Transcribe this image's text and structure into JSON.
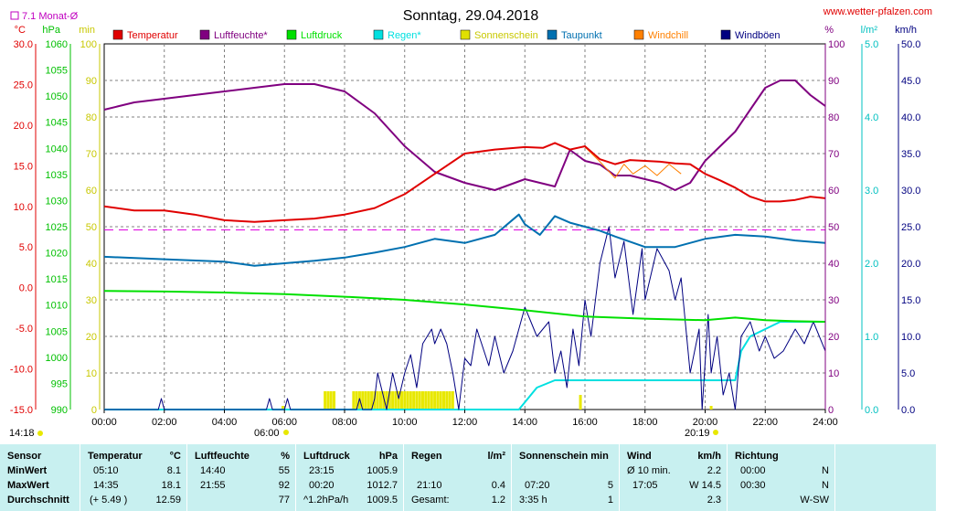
{
  "chart_data": {
    "type": "line",
    "title": "Sonntag, 29.04.2018",
    "website": "www.wetter-pfalzen.com",
    "avg_label": "7.1 Monat-Ø",
    "x_ticks": [
      "00:00",
      "02:00",
      "04:00",
      "06:00",
      "08:00",
      "10:00",
      "12:00",
      "14:00",
      "16:00",
      "18:00",
      "20:00",
      "22:00",
      "24:00"
    ],
    "sunrise": "06:00",
    "sunset": "20:19",
    "last_time": "14:18",
    "axes": {
      "temp": {
        "unit": "°C",
        "min": -15,
        "max": 30,
        "ticks": [
          "30.0",
          "25.0",
          "20.0",
          "15.0",
          "10.0",
          "5.0",
          "0.0",
          "-5.0",
          "-10.0",
          "-15.0"
        ]
      },
      "pressure": {
        "unit": "hPa",
        "min": 990,
        "max": 1060,
        "ticks": [
          "1060",
          "1055",
          "1050",
          "1045",
          "1040",
          "1035",
          "1030",
          "1025",
          "1020",
          "1015",
          "1010",
          "1005",
          "1000",
          "995",
          "990"
        ]
      },
      "minutes": {
        "unit": "min",
        "min": 0,
        "max": 100,
        "ticks": [
          "100",
          "90",
          "80",
          "70",
          "60",
          "50",
          "40",
          "30",
          "20",
          "10",
          "0"
        ]
      },
      "humidity": {
        "unit": "%",
        "min": 0,
        "max": 100,
        "ticks": [
          "100",
          "90",
          "80",
          "70",
          "60",
          "50",
          "40",
          "30",
          "20",
          "10",
          "0"
        ]
      },
      "rain": {
        "unit": "l/m²",
        "min": 0,
        "max": 5,
        "ticks": [
          "5.0",
          "4.0",
          "3.0",
          "2.0",
          "1.0",
          "0.0"
        ]
      },
      "wind": {
        "unit": "km/h",
        "min": 0,
        "max": 50,
        "ticks": [
          "50.0",
          "45.0",
          "40.0",
          "35.0",
          "30.0",
          "25.0",
          "20.0",
          "15.0",
          "10.0",
          "5.0",
          "0.0"
        ]
      }
    },
    "legend": [
      {
        "name": "Temperatur",
        "color": "#e00000"
      },
      {
        "name": "Luftfeuchte*",
        "color": "#800080"
      },
      {
        "name": "Luftdruck",
        "color": "#00e000"
      },
      {
        "name": "Regen*",
        "color": "#00e0e0"
      },
      {
        "name": "Sonnenschein",
        "color": "#e0e000"
      },
      {
        "name": "Taupunkt",
        "color": "#0070b0"
      },
      {
        "name": "Windchill",
        "color": "#ff8000"
      },
      {
        "name": "Windböen",
        "color": "#000080"
      }
    ],
    "monthly_avg_temp": 7.1,
    "series": [
      {
        "name": "Temperatur",
        "axis": "temp",
        "color": "#e00000",
        "x": [
          0,
          1,
          2,
          3,
          4,
          5,
          6,
          7,
          8,
          9,
          10,
          11,
          12,
          13,
          14,
          14.6,
          15,
          15.5,
          16,
          16.5,
          17,
          17.5,
          18,
          18.5,
          19,
          19.5,
          20,
          20.5,
          21,
          21.5,
          22,
          22.5,
          23,
          23.5,
          24
        ],
        "y": [
          10.0,
          9.5,
          9.5,
          9.0,
          8.3,
          8.1,
          8.3,
          8.5,
          9.0,
          9.8,
          11.5,
          14.0,
          16.5,
          17.0,
          17.3,
          17.2,
          17.8,
          17.0,
          17.4,
          15.8,
          15.2,
          15.7,
          15.6,
          15.5,
          15.3,
          15.2,
          14.0,
          13.2,
          12.3,
          11.2,
          10.6,
          10.6,
          10.8,
          11.2,
          11.0
        ]
      },
      {
        "name": "Luftfeuchte*",
        "axis": "humidity",
        "color": "#800080",
        "x": [
          0,
          1,
          2,
          3,
          4,
          5,
          6,
          7,
          8,
          9,
          10,
          11,
          12,
          13,
          14,
          15,
          15.5,
          16,
          16.5,
          17,
          17.5,
          18,
          18.5,
          19,
          19.5,
          20,
          20.5,
          21,
          21.5,
          22,
          22.5,
          23,
          23.5,
          24
        ],
        "y": [
          82,
          84,
          85,
          86,
          87,
          88,
          89,
          89,
          87,
          81,
          72,
          65,
          62,
          60,
          63,
          61,
          71,
          68,
          67,
          64,
          64,
          63,
          62,
          60,
          62,
          68,
          72,
          76,
          82,
          88,
          90,
          90,
          86,
          83
        ]
      },
      {
        "name": "Luftdruck",
        "axis": "pressure",
        "color": "#00e000",
        "x": [
          0,
          2,
          4,
          6,
          8,
          10,
          12,
          14,
          16,
          18,
          20,
          21,
          22,
          23,
          24
        ],
        "y": [
          1012.7,
          1012.6,
          1012.4,
          1012.1,
          1011.6,
          1011.0,
          1010.1,
          1009.0,
          1007.8,
          1007.4,
          1007.1,
          1007.6,
          1007.1,
          1006.9,
          1006.8
        ]
      },
      {
        "name": "Taupunkt",
        "axis": "temp",
        "color": "#0070b0",
        "x": [
          0,
          2,
          4,
          5,
          6,
          7,
          8,
          9,
          10,
          11,
          12,
          13,
          13.8,
          14,
          14.5,
          15,
          15.5,
          16,
          16.5,
          17,
          18,
          19,
          20,
          21,
          22,
          23,
          24
        ],
        "y": [
          3.8,
          3.5,
          3.2,
          2.7,
          3.0,
          3.3,
          3.7,
          4.3,
          5.0,
          6.0,
          5.5,
          6.5,
          9.0,
          7.8,
          6.5,
          8.8,
          8.0,
          7.5,
          7.0,
          6.3,
          5.0,
          5.0,
          6.0,
          6.5,
          6.3,
          5.8,
          5.5
        ]
      },
      {
        "name": "Windchill",
        "axis": "temp",
        "color": "#ff8000",
        "x": [
          16,
          16.5,
          17,
          17.3,
          17.6,
          18,
          18.4,
          18.8,
          19.2
        ],
        "y": [
          17.3,
          15.5,
          13.5,
          15.2,
          14.0,
          15.0,
          13.8,
          15.2,
          14.0
        ]
      },
      {
        "name": "Regen*",
        "axis": "rain",
        "color": "#00e0e0",
        "x": [
          0,
          13.8,
          14.0,
          14.4,
          15,
          16,
          17,
          18,
          19,
          20,
          21,
          21.2,
          21.5,
          22,
          22.5,
          23,
          24
        ],
        "y": [
          0,
          0,
          0.1,
          0.3,
          0.4,
          0.4,
          0.4,
          0.4,
          0.4,
          0.4,
          0.4,
          0.8,
          1.0,
          1.1,
          1.2,
          1.2,
          1.2
        ]
      },
      {
        "name": "Windböen",
        "axis": "wind",
        "color": "#000080",
        "x": [
          0,
          1.8,
          1.9,
          2.0,
          5.4,
          5.5,
          5.6,
          6.0,
          6.1,
          6.2,
          8.4,
          8.5,
          8.6,
          8.9,
          9.0,
          9.1,
          9.4,
          9.6,
          9.8,
          10.0,
          10.2,
          10.4,
          10.6,
          10.9,
          11.0,
          11.2,
          11.4,
          11.6,
          11.8,
          12.0,
          12.2,
          12.4,
          12.8,
          13.0,
          13.3,
          13.6,
          14.0,
          14.4,
          14.8,
          15.0,
          15.2,
          15.4,
          15.6,
          15.8,
          16.0,
          16.2,
          16.5,
          16.8,
          17.0,
          17.3,
          17.6,
          17.9,
          18.0,
          18.4,
          18.8,
          19.0,
          19.2,
          19.5,
          19.8,
          19.9,
          20.1,
          20.2,
          20.4,
          20.6,
          20.8,
          21.0,
          21.2,
          21.5,
          21.8,
          22.0,
          22.3,
          22.6,
          23.0,
          23.3,
          23.6,
          24.0
        ],
        "y": [
          0,
          0,
          1.5,
          0,
          0,
          1.5,
          0,
          0,
          1.5,
          0,
          0,
          1.5,
          0,
          0,
          1.5,
          5,
          0,
          5,
          1.5,
          5,
          7.5,
          3,
          9,
          11,
          9,
          11,
          9,
          5,
          0,
          7,
          6,
          11,
          6,
          10,
          5,
          8,
          14,
          10,
          12,
          5,
          8,
          3,
          11,
          6,
          15,
          10,
          20,
          25,
          18,
          23,
          13,
          22,
          15,
          22,
          19,
          15,
          18,
          5,
          11,
          0,
          13,
          5,
          10,
          2,
          5,
          0,
          10,
          12,
          8,
          10,
          7,
          8,
          11,
          9,
          12,
          8
        ]
      }
    ],
    "sun_bars": {
      "axis": "minutes",
      "x": [
        5.95,
        7.35,
        7.45,
        7.55,
        7.65,
        8.3,
        8.4,
        8.5,
        8.6,
        8.7,
        8.8,
        8.9,
        9.0,
        9.1,
        9.2,
        9.3,
        9.4,
        9.5,
        9.6,
        9.7,
        9.8,
        9.9,
        10.0,
        10.1,
        10.2,
        10.3,
        10.4,
        10.5,
        10.6,
        10.7,
        10.8,
        10.9,
        11.0,
        11.1,
        11.2,
        11.3,
        11.4,
        11.5,
        11.6,
        15.85,
        20.2
      ],
      "y": [
        1,
        5,
        5,
        5,
        5,
        5,
        5,
        5,
        5,
        5,
        5,
        5,
        5,
        5,
        5,
        5,
        5,
        5,
        5,
        5,
        5,
        5,
        5,
        5,
        5,
        5,
        5,
        5,
        5,
        5,
        5,
        5,
        5,
        5,
        5,
        5,
        5,
        5,
        5,
        4,
        1
      ]
    }
  },
  "table": {
    "rows": [
      "Sensor",
      "MinWert",
      "MaxWert",
      "Durchschnitt"
    ],
    "temperature": {
      "header": "Temperatur",
      "unit": "°C",
      "min_time": "05:10",
      "min_val": "8.1",
      "max_time": "14:35",
      "max_val": "18.1",
      "avg_time": "(+ 5.49 )",
      "avg_val": "12.59"
    },
    "humidity": {
      "header": "Luftfeuchte",
      "unit": "%",
      "min_time": "14:40",
      "min_val": "55",
      "max_time": "21:55",
      "max_val": "92",
      "avg_val": "77"
    },
    "pressure": {
      "header": "Luftdruck",
      "unit": "hPa",
      "min_time": "23:15",
      "min_val": "1005.9",
      "max_time": "00:20",
      "max_val": "1012.7",
      "avg_time": "^1.2hPa/h",
      "avg_val": "1009.5"
    },
    "rain": {
      "header": "Regen",
      "unit": "l/m²",
      "max_time": "21:10",
      "max_val": "0.4",
      "avg_label": "Gesamt:",
      "avg_val": "1.2"
    },
    "sun": {
      "header": "Sonnenschein min",
      "max_time": "07:20",
      "max_val": "5",
      "avg_time": "3:35 h",
      "avg_val": "1"
    },
    "wind": {
      "header": "Wind",
      "unit": "km/h",
      "min_label": "Ø 10 min.",
      "min_val": "2.2",
      "max_time": "17:05",
      "max_val": "W 14.5",
      "avg_val": "2.3"
    },
    "direction": {
      "header": "Richtung",
      "min_time": "00:00",
      "min_val": "N",
      "max_time": "00:30",
      "max_val": "N",
      "avg_val": "W-SW"
    }
  }
}
